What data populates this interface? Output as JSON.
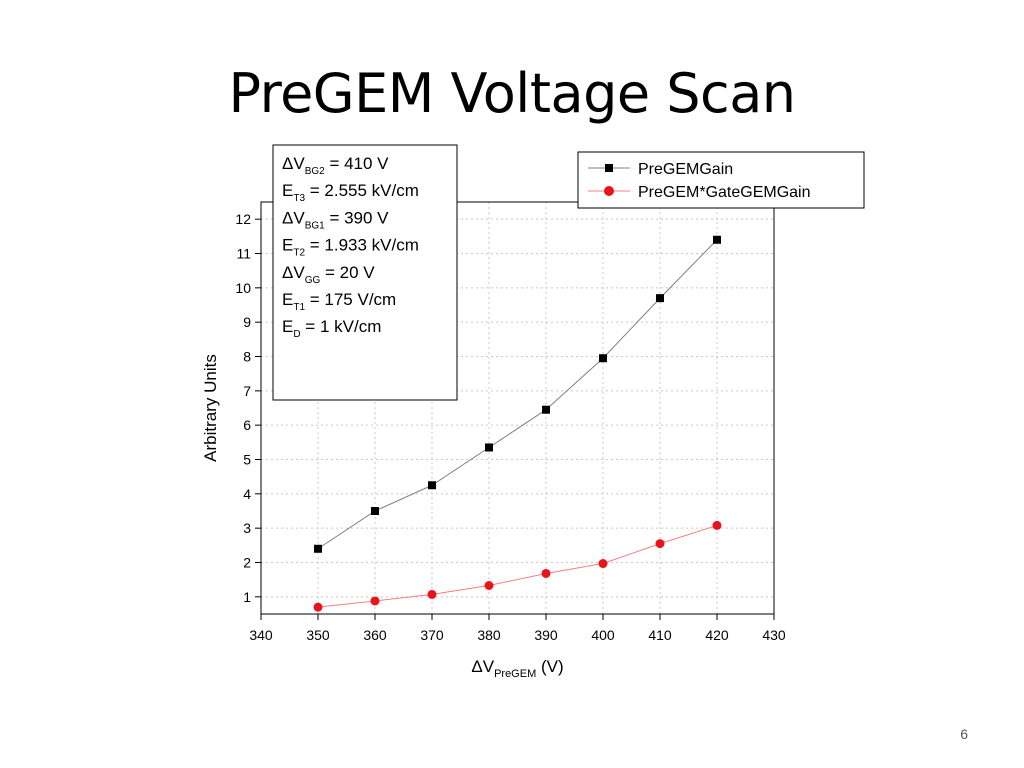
{
  "slide": {
    "title": "PreGEM Voltage Scan",
    "page_number": "6"
  },
  "chart_data": {
    "type": "line",
    "title": "",
    "xlabel": {
      "main": "ΔV",
      "sub": "PreGEM",
      "unit": " (V)"
    },
    "ylabel": "Arbitrary Units",
    "xlim": [
      340,
      430
    ],
    "ylim": [
      0.5,
      12.5
    ],
    "x_ticks": [
      340,
      350,
      360,
      370,
      380,
      390,
      400,
      410,
      420,
      430
    ],
    "y_ticks": [
      1,
      2,
      3,
      4,
      5,
      6,
      7,
      8,
      9,
      10,
      11,
      12
    ],
    "grid": true,
    "x": [
      350,
      360,
      370,
      380,
      390,
      400,
      410,
      420
    ],
    "series": [
      {
        "name": "PreGEMGain",
        "color": "#000000",
        "line_color": "#808080",
        "marker": "square",
        "values": [
          2.4,
          3.5,
          4.25,
          5.35,
          6.45,
          7.95,
          9.7,
          11.4
        ]
      },
      {
        "name": "PreGEM*GateGEMGain",
        "color": "#e8141b",
        "line_color": "#f08080",
        "marker": "circle",
        "values": [
          0.7,
          0.88,
          1.07,
          1.33,
          1.68,
          1.97,
          2.55,
          3.08
        ]
      }
    ],
    "legend_position": "top-right",
    "annotation": {
      "lines": [
        {
          "main": "ΔV",
          "sub": "BG2",
          "rest": " = 410 V"
        },
        {
          "main": "E",
          "sub": "T3",
          "rest": " = 2.555 kV/cm"
        },
        {
          "main": "ΔV",
          "sub": "BG1",
          "rest": " = 390 V"
        },
        {
          "main": "E",
          "sub": "T2",
          "rest": " = 1.933 kV/cm"
        },
        {
          "main": "ΔV",
          "sub": "GG",
          "rest": " = 20 V"
        },
        {
          "main": "E",
          "sub": "T1",
          "rest": " = 175 V/cm"
        },
        {
          "main": "E",
          "sub": "D",
          "rest": " = 1 kV/cm"
        }
      ]
    }
  }
}
